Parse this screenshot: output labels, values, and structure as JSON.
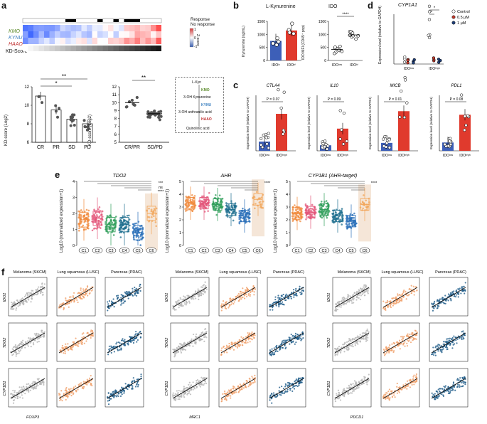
{
  "panel_letters": [
    "a",
    "b",
    "c",
    "d",
    "e",
    "f"
  ],
  "a": {
    "heat_rows": [
      "KMO",
      "KYNU",
      "HAAO",
      "KD-Score"
    ],
    "response_label": "Response",
    "no_response_label": "No response",
    "zscore_label": "Z-score",
    "zscore_ticks": [
      "1",
      "0",
      "-1"
    ],
    "bar_ylabel": "KD-score (Log2)",
    "bar_categories": [
      "CR",
      "PR",
      "SD",
      "PD"
    ],
    "bar_yticks": [
      "6",
      "8",
      "10",
      "12"
    ],
    "sig1": "**",
    "sig2": "*",
    "dot_ylabel": "KD-score (Log2)",
    "dot_categories": [
      "CR/PR",
      "SD/PD"
    ],
    "dot_yticks": [
      "5",
      "6",
      "7",
      "8",
      "9",
      "10",
      "11",
      "12"
    ],
    "dot_sig": "**",
    "pathway": [
      "L-Kyn",
      "KMO",
      "3-OH Kynurenine",
      "KYNU",
      "3-OH anthranilic acid",
      "HAAO",
      "Quinolinic acid"
    ]
  },
  "b": {
    "title1": "L-Kynurenine",
    "ylabel1": "Kynurenine (ng/mL)",
    "yticks1": [
      "0",
      "500",
      "1000",
      "1500"
    ],
    "cats1": [
      "IDOˡᵒ",
      "IDOʰⁱ"
    ],
    "title2": "IDO",
    "ylabel2": "IDO MFI (CD45⁺ pop)",
    "yticks2": [
      "0",
      "500",
      "1000",
      "1500"
    ],
    "sig2": "****",
    "cats2": [
      "IDOˡᵒʷ",
      "IDOʰⁱ"
    ]
  },
  "c": {
    "genes": [
      "CTLA4",
      "IL10",
      "MICB",
      "PDL1"
    ],
    "pvals": [
      "P = 0.07",
      "P = 0.09",
      "P = 0.01",
      "P = 0.08"
    ],
    "ylabel": "Expression level (relative to GAPDH)",
    "cats": [
      "IDOˡᵒʷ",
      "IDOʰⁱᵍʰ"
    ]
  },
  "d": {
    "gene": "CYP1A1",
    "ylabel": "Expression level (relative to GAPDH)",
    "legend": [
      "Control",
      "0.5 μM",
      "1 μM"
    ],
    "cats": [
      "IDOˡᵒʷ",
      "IDOʰⁱᵍʰ"
    ],
    "sig": [
      "*",
      "*"
    ]
  },
  "e": {
    "titles": [
      "TDO2",
      "AHR",
      "CYP1B1 (AHR-target)"
    ],
    "ylabel": "Log10 (normalized expression+1)",
    "clusters": [
      "C1",
      "C2",
      "C3",
      "C4",
      "C5",
      "C6"
    ],
    "sig1": [
      "***",
      "ns",
      "****"
    ],
    "sig2": "****",
    "sig3": "****"
  },
  "f": {
    "cohorts": [
      "Melanoma (SKCM)",
      "Lung squamous (LUSC)",
      "Pancreas (PDAC)"
    ],
    "row_genes": [
      "IDO1",
      "TDO2",
      "CYP1B1"
    ],
    "col_genes": [
      "FOXP3",
      "MRC1",
      "PDCD1"
    ],
    "colors": {
      "skcm": "#b5b5b5",
      "lusc": "#f0a06a",
      "pdac": "#1f5d8a"
    }
  },
  "chart_data": [
    {
      "type": "bar",
      "panel": "a",
      "categories": [
        "CR",
        "PR",
        "SD",
        "PD"
      ],
      "values": [
        11.0,
        9.5,
        8.5,
        8.0
      ],
      "ylabel": "KD-score (Log2)",
      "ylim": [
        6,
        12
      ]
    },
    {
      "type": "scatter",
      "panel": "a",
      "categories": [
        "CR/PR",
        "SD/PD"
      ],
      "values": [
        10.0,
        8.6
      ],
      "ylabel": "KD-score (Log2)",
      "ylim": [
        5,
        12
      ]
    },
    {
      "type": "bar",
      "panel": "b",
      "title": "L-Kynurenine",
      "categories": [
        "IDO low",
        "IDO hi"
      ],
      "values": [
        750,
        1150
      ],
      "ylim": [
        0,
        1500
      ]
    },
    {
      "type": "scatter",
      "panel": "b",
      "title": "IDO",
      "categories": [
        "IDO low",
        "IDO hi"
      ],
      "values": [
        420,
        980
      ],
      "ylim": [
        0,
        1500
      ]
    },
    {
      "type": "bar",
      "panel": "c",
      "series": [
        {
          "name": "CTLA4",
          "values": [
            0.02,
            0.08
          ]
        },
        {
          "name": "IL10",
          "values": [
            0.005,
            0.02
          ]
        },
        {
          "name": "MICB",
          "values": [
            0.01,
            0.05
          ]
        },
        {
          "name": "PDL1",
          "values": [
            0.003,
            0.013
          ]
        }
      ],
      "categories": [
        "IDO low",
        "IDO high"
      ]
    },
    {
      "type": "scatter",
      "panel": "d",
      "title": "CYP1A1",
      "categories": [
        "IDO low",
        "IDO high"
      ],
      "series": [
        {
          "name": "Control",
          "values": [
            0.01,
            0.08
          ]
        },
        {
          "name": "0.5 μM",
          "values": [
            0.005,
            0.01
          ]
        },
        {
          "name": "1 μM",
          "values": [
            0.005,
            0.01
          ]
        }
      ]
    },
    {
      "type": "box",
      "panel": "e",
      "title": "TDO2",
      "categories": [
        "C1",
        "C2",
        "C3",
        "C4",
        "C5",
        "C6"
      ],
      "values": [
        1.6,
        1.7,
        1.3,
        1.3,
        0.8,
        2.0
      ],
      "ylim": [
        0,
        4
      ]
    },
    {
      "type": "box",
      "panel": "e",
      "title": "AHR",
      "categories": [
        "C1",
        "C2",
        "C3",
        "C4",
        "C5",
        "C6"
      ],
      "values": [
        3.3,
        3.3,
        3.2,
        2.8,
        2.3,
        3.6
      ],
      "ylim": [
        0,
        5
      ]
    },
    {
      "type": "box",
      "panel": "e",
      "title": "CYP1B1 (AHR-target)",
      "categories": [
        "C1",
        "C2",
        "C3",
        "C4",
        "C5",
        "C6"
      ],
      "values": [
        2.5,
        2.6,
        2.8,
        2.3,
        1.9,
        3.2
      ],
      "ylim": [
        0,
        5
      ]
    }
  ]
}
